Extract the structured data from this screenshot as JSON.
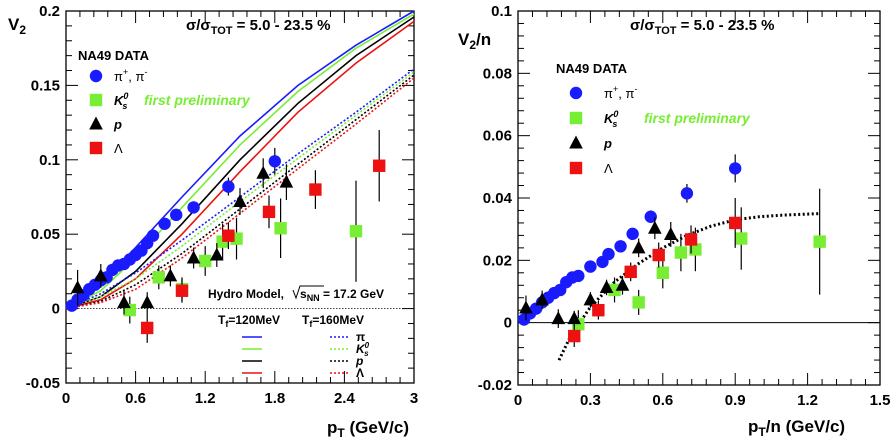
{
  "colors": {
    "pion": "#1a1aff",
    "kaon": "#77ee33",
    "proton": "#000000",
    "lambda": "#ee1111"
  },
  "chart_data": [
    {
      "type": "scatter",
      "id": "left",
      "centrality": "σ/σTOT = 5.0 - 23.5 %",
      "ylabel": "V2",
      "xlabel": "pT (GeV/c)",
      "xlim": [
        0,
        3
      ],
      "ylim": [
        -0.05,
        0.2
      ],
      "xticks": [
        0,
        0.6,
        1.2,
        1.8,
        2.4,
        3
      ],
      "xtick_labels": [
        "0",
        "0.6",
        "1.2",
        "1.8",
        "2.4",
        "3"
      ],
      "yticks": [
        -0.05,
        0,
        0.05,
        0.1,
        0.15,
        0.2
      ],
      "ytick_labels": [
        "-0.05",
        "0",
        "0.05",
        "0.1",
        "0.15",
        "0.2"
      ],
      "legend_title": "NA49 DATA",
      "legend": [
        {
          "key": "pion",
          "label": "π+, π-",
          "marker": "circle"
        },
        {
          "key": "kaon",
          "label": "K0s",
          "marker": "square",
          "note": "first preliminary"
        },
        {
          "key": "proton",
          "label": "p",
          "marker": "triangle"
        },
        {
          "key": "lambda",
          "label": "Λ",
          "marker": "square"
        }
      ],
      "series": [
        {
          "key": "pion",
          "marker": "circle",
          "points": [
            [
              0.05,
              0.002,
              0.001
            ],
            [
              0.1,
              0.006,
              0.002
            ],
            [
              0.15,
              0.009,
              0.002
            ],
            [
              0.2,
              0.013,
              0.002
            ],
            [
              0.25,
              0.016,
              0.002
            ],
            [
              0.3,
              0.019,
              0.002
            ],
            [
              0.35,
              0.021,
              0.002
            ],
            [
              0.4,
              0.026,
              0.002
            ],
            [
              0.45,
              0.029,
              0.002
            ],
            [
              0.5,
              0.03,
              0.002
            ],
            [
              0.55,
              0.033,
              0.002
            ],
            [
              0.6,
              0.036,
              0.002
            ],
            [
              0.65,
              0.039,
              0.002
            ],
            [
              0.7,
              0.044,
              0.002
            ],
            [
              0.75,
              0.049,
              0.003
            ],
            [
              0.85,
              0.057,
              0.003
            ],
            [
              0.95,
              0.063,
              0.003
            ],
            [
              1.1,
              0.068,
              0.004
            ],
            [
              1.4,
              0.082,
              0.006
            ],
            [
              1.8,
              0.099,
              0.009
            ]
          ]
        },
        {
          "key": "kaon",
          "marker": "square",
          "points": [
            [
              0.55,
              -0.001,
              0.009
            ],
            [
              0.8,
              0.021,
              0.008
            ],
            [
              1.0,
              0.013,
              0.008
            ],
            [
              1.2,
              0.032,
              0.01
            ],
            [
              1.35,
              0.045,
              0.012
            ],
            [
              1.47,
              0.047,
              0.014
            ],
            [
              1.85,
              0.054,
              0.02
            ],
            [
              2.5,
              0.052,
              0.034
            ]
          ]
        },
        {
          "key": "proton",
          "marker": "triangle",
          "points": [
            [
              0.1,
              0.014,
              0.012
            ],
            [
              0.3,
              0.022,
              0.008
            ],
            [
              0.5,
              0.004,
              0.008
            ],
            [
              0.7,
              0.004,
              0.007
            ],
            [
              0.9,
              0.022,
              0.007
            ],
            [
              1.1,
              0.034,
              0.007
            ],
            [
              1.3,
              0.036,
              0.008
            ],
            [
              1.5,
              0.072,
              0.009
            ],
            [
              1.7,
              0.091,
              0.01
            ],
            [
              1.9,
              0.085,
              0.012
            ]
          ]
        },
        {
          "key": "lambda",
          "marker": "square",
          "points": [
            [
              0.7,
              -0.013,
              0.01
            ],
            [
              1.0,
              0.012,
              0.008
            ],
            [
              1.4,
              0.049,
              0.009
            ],
            [
              1.75,
              0.065,
              0.011
            ],
            [
              2.15,
              0.08,
              0.013
            ],
            [
              2.7,
              0.096,
              0.024
            ]
          ]
        }
      ],
      "model": {
        "label": "Hydro Model,",
        "energy": "√sNN = 17.2 GeV",
        "t1_label": "Tf=120MeV",
        "t2_label": "Tf=160MeV",
        "species_labels": [
          "π",
          "K0s",
          "p",
          "Λ"
        ],
        "curves_120": [
          {
            "key": "pion",
            "points": [
              [
                0,
                0
              ],
              [
                0.3,
                0.017
              ],
              [
                0.6,
                0.041
              ],
              [
                1.0,
                0.075
              ],
              [
                1.5,
                0.116
              ],
              [
                2.0,
                0.15
              ],
              [
                2.5,
                0.177
              ],
              [
                3.0,
                0.2
              ]
            ]
          },
          {
            "key": "kaon",
            "points": [
              [
                0,
                0
              ],
              [
                0.3,
                0.012
              ],
              [
                0.6,
                0.034
              ],
              [
                1.0,
                0.068
              ],
              [
                1.5,
                0.11
              ],
              [
                2.0,
                0.146
              ],
              [
                2.5,
                0.175
              ],
              [
                3.0,
                0.198
              ]
            ]
          },
          {
            "key": "proton",
            "points": [
              [
                0,
                0
              ],
              [
                0.3,
                0.008
              ],
              [
                0.6,
                0.025
              ],
              [
                1.0,
                0.057
              ],
              [
                1.5,
                0.1
              ],
              [
                2.0,
                0.138
              ],
              [
                2.5,
                0.17
              ],
              [
                3.0,
                0.196
              ]
            ]
          },
          {
            "key": "lambda",
            "points": [
              [
                0,
                0
              ],
              [
                0.3,
                0.006
              ],
              [
                0.6,
                0.02
              ],
              [
                1.0,
                0.05
              ],
              [
                1.5,
                0.092
              ],
              [
                2.0,
                0.132
              ],
              [
                2.5,
                0.165
              ],
              [
                3.0,
                0.193
              ]
            ]
          }
        ],
        "curves_160": [
          {
            "key": "pion",
            "points": [
              [
                0,
                0
              ],
              [
                0.3,
                0.01
              ],
              [
                0.6,
                0.024
              ],
              [
                1.0,
                0.046
              ],
              [
                1.5,
                0.075
              ],
              [
                2.0,
                0.104
              ],
              [
                2.5,
                0.132
              ],
              [
                3.0,
                0.161
              ]
            ]
          },
          {
            "key": "kaon",
            "points": [
              [
                0,
                0
              ],
              [
                0.3,
                0.008
              ],
              [
                0.6,
                0.02
              ],
              [
                1.0,
                0.042
              ],
              [
                1.5,
                0.072
              ],
              [
                2.0,
                0.101
              ],
              [
                2.5,
                0.13
              ],
              [
                3.0,
                0.159
              ]
            ]
          },
          {
            "key": "proton",
            "points": [
              [
                0,
                0
              ],
              [
                0.3,
                0.005
              ],
              [
                0.6,
                0.016
              ],
              [
                1.0,
                0.037
              ],
              [
                1.5,
                0.067
              ],
              [
                2.0,
                0.097
              ],
              [
                2.5,
                0.127
              ],
              [
                3.0,
                0.157
              ]
            ]
          },
          {
            "key": "lambda",
            "points": [
              [
                0,
                0
              ],
              [
                0.3,
                0.004
              ],
              [
                0.6,
                0.013
              ],
              [
                1.0,
                0.034
              ],
              [
                1.5,
                0.064
              ],
              [
                2.0,
                0.094
              ],
              [
                2.5,
                0.124
              ],
              [
                3.0,
                0.155
              ]
            ]
          }
        ]
      }
    },
    {
      "type": "scatter",
      "id": "right",
      "centrality": "σ/σTOT = 5.0 - 23.5 %",
      "ylabel": "V2/n",
      "xlabel": "pT/n (GeV/c)",
      "xlim": [
        0,
        1.5
      ],
      "ylim": [
        -0.02,
        0.1
      ],
      "xticks": [
        0,
        0.3,
        0.6,
        0.9,
        1.2,
        1.5
      ],
      "xtick_labels": [
        "0",
        "0.3",
        "0.6",
        "0.9",
        "1.2",
        "1.5"
      ],
      "yticks": [
        -0.02,
        0,
        0.02,
        0.04,
        0.06,
        0.08,
        0.1
      ],
      "ytick_labels": [
        "-0.02",
        "0",
        "0.02",
        "0.04",
        "0.06",
        "0.08",
        "0.1"
      ],
      "legend_title": "NA49 DATA",
      "legend": [
        {
          "key": "pion",
          "label": "π+, π-",
          "marker": "circle"
        },
        {
          "key": "kaon",
          "label": "K0s",
          "marker": "square",
          "note": "first preliminary"
        },
        {
          "key": "proton",
          "label": "p",
          "marker": "triangle"
        },
        {
          "key": "lambda",
          "label": "Λ",
          "marker": "square"
        }
      ],
      "series": [
        {
          "key": "pion",
          "marker": "circle",
          "points": [
            [
              0.025,
              0.001,
              0.001
            ],
            [
              0.05,
              0.003,
              0.001
            ],
            [
              0.075,
              0.0045,
              0.001
            ],
            [
              0.1,
              0.0065,
              0.001
            ],
            [
              0.125,
              0.008,
              0.001
            ],
            [
              0.15,
              0.0095,
              0.001
            ],
            [
              0.175,
              0.0105,
              0.001
            ],
            [
              0.2,
              0.013,
              0.001
            ],
            [
              0.225,
              0.0145,
              0.001
            ],
            [
              0.25,
              0.015,
              0.001
            ],
            [
              0.3,
              0.018,
              0.001
            ],
            [
              0.35,
              0.0195,
              0.001
            ],
            [
              0.375,
              0.022,
              0.001
            ],
            [
              0.425,
              0.0245,
              0.0015
            ],
            [
              0.475,
              0.0285,
              0.0015
            ],
            [
              0.55,
              0.034,
              0.002
            ],
            [
              0.7,
              0.0415,
              0.003
            ],
            [
              0.9,
              0.0495,
              0.0045
            ]
          ]
        },
        {
          "key": "kaon",
          "marker": "square",
          "points": [
            [
              0.25,
              -0.0005,
              0.0045
            ],
            [
              0.4,
              0.0105,
              0.004
            ],
            [
              0.5,
              0.0065,
              0.004
            ],
            [
              0.6,
              0.016,
              0.005
            ],
            [
              0.675,
              0.0225,
              0.006
            ],
            [
              0.735,
              0.0235,
              0.007
            ],
            [
              0.925,
              0.027,
              0.01
            ],
            [
              1.25,
              0.026,
              0.017
            ]
          ]
        },
        {
          "key": "proton",
          "marker": "triangle",
          "points": [
            [
              0.033,
              0.0047,
              0.004
            ],
            [
              0.1,
              0.0073,
              0.003
            ],
            [
              0.167,
              0.0013,
              0.003
            ],
            [
              0.233,
              0.0013,
              0.0025
            ],
            [
              0.3,
              0.0073,
              0.0025
            ],
            [
              0.367,
              0.0113,
              0.0025
            ],
            [
              0.433,
              0.012,
              0.003
            ],
            [
              0.5,
              0.024,
              0.003
            ],
            [
              0.567,
              0.0303,
              0.0035
            ],
            [
              0.633,
              0.0283,
              0.004
            ]
          ]
        },
        {
          "key": "lambda",
          "marker": "square",
          "points": [
            [
              0.233,
              -0.0043,
              0.0035
            ],
            [
              0.333,
              0.004,
              0.003
            ],
            [
              0.467,
              0.0163,
              0.003
            ],
            [
              0.583,
              0.0217,
              0.004
            ],
            [
              0.717,
              0.0267,
              0.0045
            ],
            [
              0.9,
              0.032,
              0.008
            ]
          ]
        }
      ],
      "fit": {
        "points": [
          [
            0.17,
            -0.012
          ],
          [
            0.22,
            -0.004
          ],
          [
            0.3,
            0.005
          ],
          [
            0.4,
            0.013
          ],
          [
            0.5,
            0.019
          ],
          [
            0.6,
            0.024
          ],
          [
            0.7,
            0.028
          ],
          [
            0.8,
            0.031
          ],
          [
            0.9,
            0.033
          ],
          [
            1.0,
            0.034
          ],
          [
            1.1,
            0.0345
          ],
          [
            1.25,
            0.035
          ]
        ]
      }
    }
  ]
}
